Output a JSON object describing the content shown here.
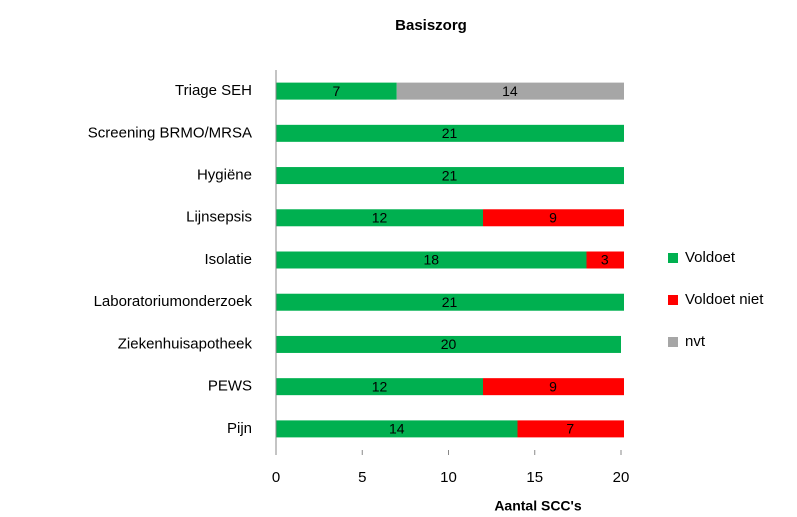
{
  "chart_data": {
    "type": "stacked-barh",
    "title": "Basiszorg",
    "xlabel": "Aantal SCC's",
    "categories": [
      "Triage SEH",
      "Screening BRMO/MRSA",
      "Hygiëne",
      "Lijnsepsis",
      "Isolatie",
      "Laboratoriumonderzoek",
      "Ziekenhuisapotheek",
      "PEWS",
      "Pijn"
    ],
    "series": [
      {
        "name": "Voldoet",
        "color": "#00b050",
        "values": [
          7,
          21,
          21,
          12,
          18,
          21,
          20,
          12,
          14
        ]
      },
      {
        "name": "Voldoet niet",
        "color": "#ff0000",
        "values": [
          null,
          null,
          null,
          9,
          3,
          null,
          null,
          9,
          7
        ]
      },
      {
        "name": "nvt",
        "color": "#a6a6a6",
        "values": [
          14,
          null,
          null,
          null,
          null,
          null,
          null,
          null,
          null
        ]
      }
    ],
    "xlim": [
      0,
      20
    ],
    "xticks": [
      0,
      5,
      10,
      15,
      20
    ],
    "legend": "right"
  }
}
